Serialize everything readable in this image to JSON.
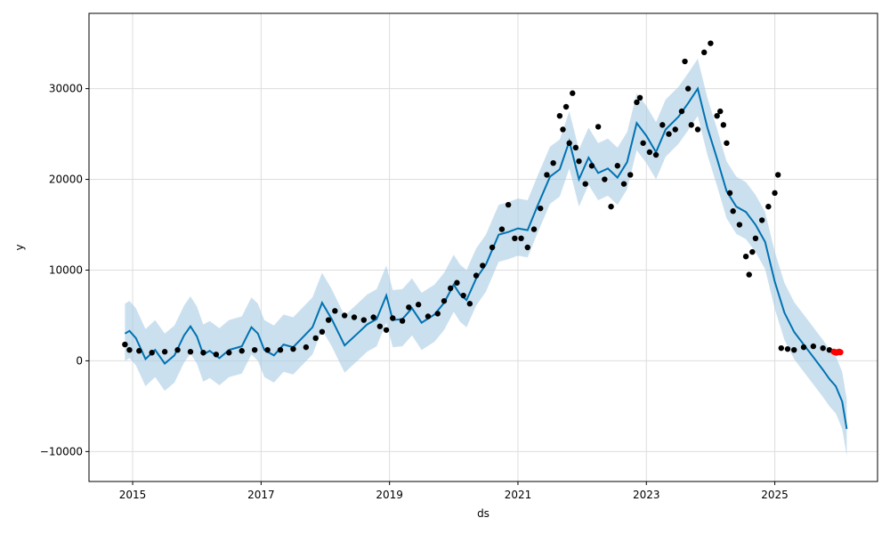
{
  "chart_data": {
    "type": "line",
    "xlabel": "ds",
    "ylabel": "y",
    "xlim": [
      2014.32,
      2026.6
    ],
    "ylim": [
      -13300,
      38300
    ],
    "grid": true,
    "colors": {
      "observed": "#000000",
      "recent": "#ff0000",
      "forecast": "#0072b2",
      "interval": "#a8cce3"
    },
    "x_ticks": [
      {
        "value": 2015,
        "label": "2015"
      },
      {
        "value": 2017,
        "label": "2017"
      },
      {
        "value": 2019,
        "label": "2019"
      },
      {
        "value": 2021,
        "label": "2021"
      },
      {
        "value": 2023,
        "label": "2023"
      },
      {
        "value": 2025,
        "label": "2025"
      }
    ],
    "y_ticks": [
      {
        "value": -10000,
        "label": "−10000"
      },
      {
        "value": 0,
        "label": "0"
      },
      {
        "value": 10000,
        "label": "10000"
      },
      {
        "value": 20000,
        "label": "20000"
      },
      {
        "value": 30000,
        "label": "30000"
      }
    ],
    "forecast": {
      "x": [
        2014.88,
        2014.95,
        2015.05,
        2015.2,
        2015.35,
        2015.5,
        2015.65,
        2015.8,
        2015.9,
        2016.0,
        2016.1,
        2016.2,
        2016.35,
        2016.5,
        2016.7,
        2016.85,
        2016.95,
        2017.05,
        2017.2,
        2017.35,
        2017.5,
        2017.65,
        2017.8,
        2017.95,
        2018.1,
        2018.3,
        2018.5,
        2018.65,
        2018.8,
        2018.95,
        2019.05,
        2019.2,
        2019.35,
        2019.5,
        2019.7,
        2019.85,
        2020.0,
        2020.1,
        2020.2,
        2020.35,
        2020.5,
        2020.7,
        2020.85,
        2021.0,
        2021.15,
        2021.3,
        2021.5,
        2021.65,
        2021.8,
        2021.95,
        2022.1,
        2022.25,
        2022.4,
        2022.55,
        2022.7,
        2022.85,
        2023.0,
        2023.15,
        2023.3,
        2023.5,
        2023.65,
        2023.8,
        2023.95,
        2024.1,
        2024.25,
        2024.4,
        2024.55,
        2024.7,
        2024.85,
        2025.0,
        2025.15,
        2025.3,
        2025.45,
        2025.6,
        2025.75,
        2025.85,
        2025.95,
        2026.05,
        2026.12
      ],
      "yhat": [
        3000,
        3300,
        2500,
        200,
        1200,
        -300,
        600,
        2800,
        3800,
        2700,
        700,
        1100,
        300,
        1200,
        1600,
        3700,
        3000,
        1200,
        600,
        1800,
        1500,
        2600,
        3700,
        6400,
        4600,
        1700,
        3000,
        4000,
        4600,
        7200,
        4500,
        4600,
        5800,
        4200,
        5100,
        6400,
        8400,
        7300,
        6700,
        9100,
        10600,
        13900,
        14200,
        14600,
        14400,
        17000,
        20300,
        21100,
        24200,
        20000,
        22400,
        20700,
        21200,
        20200,
        21900,
        26200,
        24800,
        23000,
        25500,
        26900,
        28400,
        30000,
        25700,
        22300,
        18700,
        17000,
        16400,
        15000,
        13100,
        8700,
        5300,
        3200,
        1800,
        400,
        -1000,
        -2000,
        -2800,
        -4500,
        -7500
      ],
      "lower": [
        0,
        300,
        -500,
        -2800,
        -1800,
        -3300,
        -2400,
        -200,
        800,
        -300,
        -2300,
        -1900,
        -2700,
        -1800,
        -1400,
        700,
        0,
        -1800,
        -2400,
        -1200,
        -1500,
        -400,
        700,
        3400,
        1600,
        -1300,
        0,
        1000,
        1600,
        4200,
        1500,
        1600,
        2800,
        1200,
        2100,
        3400,
        5400,
        4300,
        3700,
        6100,
        7600,
        10900,
        11200,
        11600,
        11400,
        14000,
        17300,
        18100,
        21200,
        17000,
        19400,
        17700,
        18200,
        17200,
        18900,
        23200,
        21800,
        20000,
        22500,
        23900,
        25400,
        27000,
        22700,
        19300,
        15700,
        14000,
        13400,
        12000,
        10100,
        5700,
        2300,
        200,
        -1200,
        -2600,
        -4000,
        -5000,
        -5800,
        -7500,
        -10500
      ],
      "upper": [
        6300,
        6600,
        5800,
        3500,
        4500,
        3000,
        3900,
        6100,
        7100,
        6000,
        4000,
        4400,
        3600,
        4500,
        4900,
        7000,
        6300,
        4500,
        3900,
        5100,
        4800,
        5900,
        7000,
        9700,
        7900,
        5000,
        6300,
        7300,
        7900,
        10500,
        7800,
        7900,
        9100,
        7500,
        8400,
        9700,
        11700,
        10600,
        10000,
        12400,
        13900,
        17200,
        17500,
        17900,
        17700,
        20300,
        23600,
        24400,
        27500,
        23300,
        25700,
        24000,
        24500,
        23500,
        25200,
        29500,
        28100,
        26300,
        28800,
        30200,
        31700,
        33300,
        29000,
        25600,
        22000,
        20300,
        19700,
        18300,
        16400,
        12000,
        8600,
        6500,
        5100,
        3700,
        2300,
        1300,
        500,
        -1200,
        -4200
      ]
    },
    "observed": {
      "x": [
        2014.88,
        2014.95,
        2015.1,
        2015.3,
        2015.5,
        2015.7,
        2015.9,
        2016.1,
        2016.3,
        2016.5,
        2016.7,
        2016.9,
        2017.1,
        2017.3,
        2017.5,
        2017.7,
        2017.85,
        2017.95,
        2018.05,
        2018.15,
        2018.3,
        2018.45,
        2018.6,
        2018.75,
        2018.85,
        2018.95,
        2019.05,
        2019.2,
        2019.3,
        2019.45,
        2019.6,
        2019.75,
        2019.85,
        2019.95,
        2020.05,
        2020.15,
        2020.25,
        2020.35,
        2020.45,
        2020.6,
        2020.75,
        2020.85,
        2020.95,
        2021.05,
        2021.15,
        2021.25,
        2021.35,
        2021.45,
        2021.55,
        2021.65,
        2021.7,
        2021.75,
        2021.8,
        2021.85,
        2021.9,
        2021.95,
        2022.05,
        2022.15,
        2022.25,
        2022.35,
        2022.45,
        2022.55,
        2022.65,
        2022.75,
        2022.85,
        2022.9,
        2022.95,
        2023.05,
        2023.15,
        2023.25,
        2023.35,
        2023.45,
        2023.55,
        2023.6,
        2023.65,
        2023.7,
        2023.8,
        2023.9,
        2024.0,
        2024.1,
        2024.15,
        2024.2,
        2024.25,
        2024.3,
        2024.35,
        2024.45,
        2024.55,
        2024.6,
        2024.65,
        2024.7,
        2024.8,
        2024.9,
        2025.0,
        2025.05,
        2025.1,
        2025.2,
        2025.3,
        2025.45,
        2025.6,
        2025.75,
        2025.85
      ],
      "y": [
        1800,
        1200,
        1100,
        900,
        1000,
        1200,
        1000,
        900,
        700,
        900,
        1100,
        1200,
        1200,
        1200,
        1300,
        1500,
        2500,
        3200,
        4500,
        5500,
        5000,
        4800,
        4500,
        4800,
        3800,
        3400,
        4700,
        4400,
        5900,
        6200,
        4900,
        5200,
        6600,
        8000,
        8600,
        7200,
        6300,
        9400,
        10500,
        12500,
        14500,
        17200,
        13500,
        13500,
        12500,
        14500,
        16800,
        20500,
        21800,
        27000,
        25500,
        28000,
        24000,
        29500,
        23500,
        22000,
        19500,
        21500,
        25800,
        20000,
        17000,
        21500,
        19500,
        20500,
        28500,
        29000,
        24000,
        23000,
        22700,
        26000,
        25000,
        25500,
        27500,
        33000,
        30000,
        26000,
        25500,
        34000,
        35000,
        27000,
        27500,
        26000,
        24000,
        18500,
        16500,
        15000,
        11500,
        9500,
        12000,
        13500,
        15500,
        17000,
        18500,
        20500,
        1400,
        1300,
        1200,
        1500,
        1600,
        1400,
        1200
      ]
    },
    "recent": {
      "x": [
        2025.92,
        2025.94,
        2025.96,
        2025.98,
        2026.0,
        2026.02
      ],
      "y": [
        1000,
        950,
        900,
        950,
        1000,
        950
      ]
    }
  }
}
